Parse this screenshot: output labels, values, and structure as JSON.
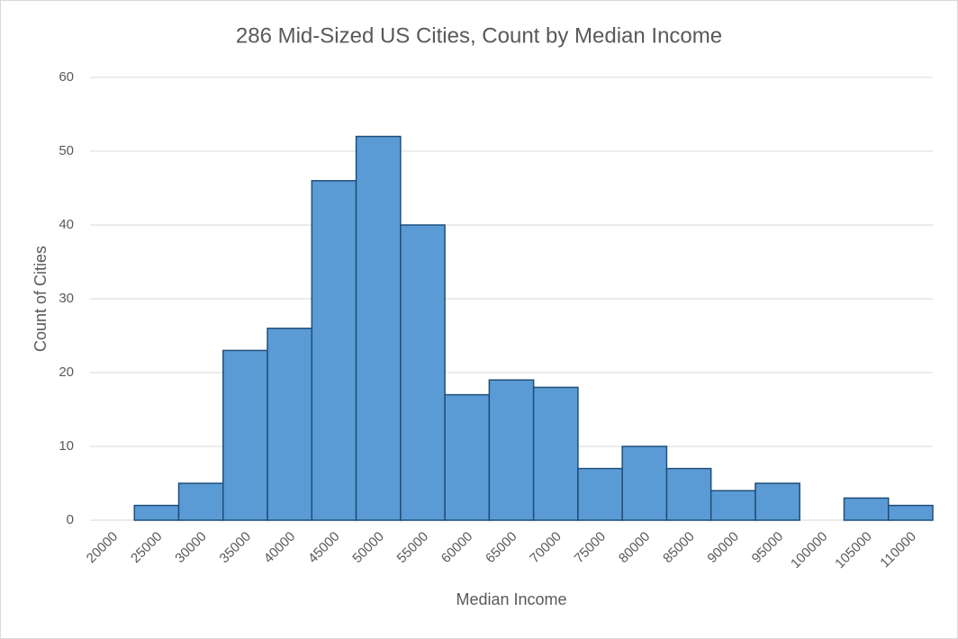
{
  "chart_data": {
    "type": "bar",
    "title": "286 Mid-Sized US Cities, Count by Median Income",
    "x_label": "Median Income",
    "y_label": "Count of Cities",
    "categories": [
      "20000",
      "25000",
      "30000",
      "35000",
      "40000",
      "45000",
      "50000",
      "55000",
      "60000",
      "65000",
      "70000",
      "75000",
      "80000",
      "85000",
      "90000",
      "95000",
      "100000",
      "105000",
      "110000"
    ],
    "values": [
      0,
      2,
      5,
      23,
      26,
      46,
      52,
      40,
      17,
      19,
      18,
      7,
      10,
      7,
      4,
      5,
      0,
      3,
      2
    ],
    "color": "#5b9bd5",
    "edge_color": "#1f4e79",
    "ylim": [
      0,
      60
    ],
    "yticks": [
      0,
      10,
      20,
      30,
      40,
      50,
      60
    ],
    "grid": true
  }
}
